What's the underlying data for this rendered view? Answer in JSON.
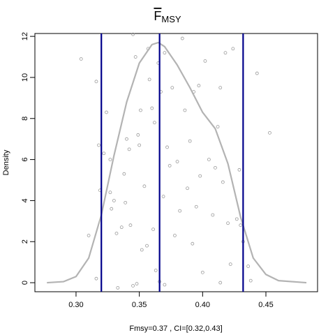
{
  "chart_data": {
    "type": "density",
    "title": "F",
    "title_subscript": "MSY",
    "x_label": "Fmsy=0.37 , CI=[0.32,0.43]",
    "y_label": "Density",
    "xlim": [
      0.2675,
      0.4908
    ],
    "ylim": [
      -0.44,
      12.14
    ],
    "xticks": [
      {
        "value": 0.3,
        "label": "0.30"
      },
      0.35,
      {
        "value": 0.4,
        "label": "0.40"
      },
      0.45
    ],
    "yticks": [
      0,
      2,
      4,
      6,
      8,
      10,
      12
    ],
    "density": {
      "color": "#b3b3b3",
      "x": [
        0.277,
        0.29,
        0.3,
        0.31,
        0.32,
        0.33,
        0.34,
        0.35,
        0.36,
        0.365,
        0.37,
        0.38,
        0.39,
        0.4,
        0.41,
        0.42,
        0.43,
        0.44,
        0.45,
        0.46,
        0.482
      ],
      "y": [
        0,
        0.05,
        0.3,
        1.2,
        3.3,
        6.2,
        8.8,
        10.7,
        11.6,
        11.7,
        11.5,
        10.6,
        9.5,
        8.3,
        7.5,
        5.8,
        3.2,
        1.2,
        0.4,
        0.1,
        0
      ]
    },
    "points": {
      "color": "#999999",
      "x": [
        0.304,
        0.316,
        0.318,
        0.319,
        0.322,
        0.324,
        0.327,
        0.327,
        0.328,
        0.33,
        0.332,
        0.336,
        0.338,
        0.339,
        0.34,
        0.342,
        0.343,
        0.345,
        0.347,
        0.349,
        0.35,
        0.351,
        0.352,
        0.354,
        0.356,
        0.357,
        0.358,
        0.36,
        0.361,
        0.362,
        0.363,
        0.365,
        0.367,
        0.369,
        0.37,
        0.372,
        0.374,
        0.376,
        0.378,
        0.38,
        0.382,
        0.384,
        0.386,
        0.388,
        0.39,
        0.392,
        0.393,
        0.395,
        0.397,
        0.398,
        0.4,
        0.402,
        0.405,
        0.408,
        0.41,
        0.412,
        0.414,
        0.416,
        0.418,
        0.42,
        0.422,
        0.424,
        0.427,
        0.429,
        0.43,
        0.432,
        0.436,
        0.438,
        0.443,
        0.453,
        0.31,
        0.316,
        0.345,
        0.348,
        0.333,
        0.366,
        0.414,
        0.37
      ],
      "y": [
        10.9,
        9.8,
        6.7,
        4.5,
        6.3,
        8.3,
        6.0,
        4.4,
        3.6,
        4.0,
        2.4,
        2.7,
        5.3,
        3.9,
        7.0,
        6.5,
        2.8,
        12.1,
        11.0,
        7.2,
        6.7,
        8.4,
        1.6,
        4.7,
        1.8,
        11.4,
        9.9,
        8.5,
        2.6,
        7.8,
        0.6,
        10.7,
        9.3,
        4.2,
        11.2,
        6.6,
        5.7,
        9.5,
        2.3,
        5.9,
        3.5,
        11.9,
        8.4,
        4.6,
        6.9,
        1.9,
        9.3,
        3.7,
        9.6,
        5.2,
        0.5,
        10.8,
        6.0,
        3.3,
        5.6,
        7.6,
        9.5,
        4.9,
        11.2,
        2.9,
        0.9,
        11.4,
        3.1,
        5.5,
        2.8,
        2.0,
        0.8,
        0.1,
        10.2,
        7.3,
        2.3,
        0.2,
        -0.15,
        -0.05,
        -0.25,
        0.05,
        0.0,
        -0.1
      ]
    },
    "vlines": {
      "color": "#00008b",
      "x": [
        0.32,
        0.366,
        0.432
      ]
    }
  }
}
